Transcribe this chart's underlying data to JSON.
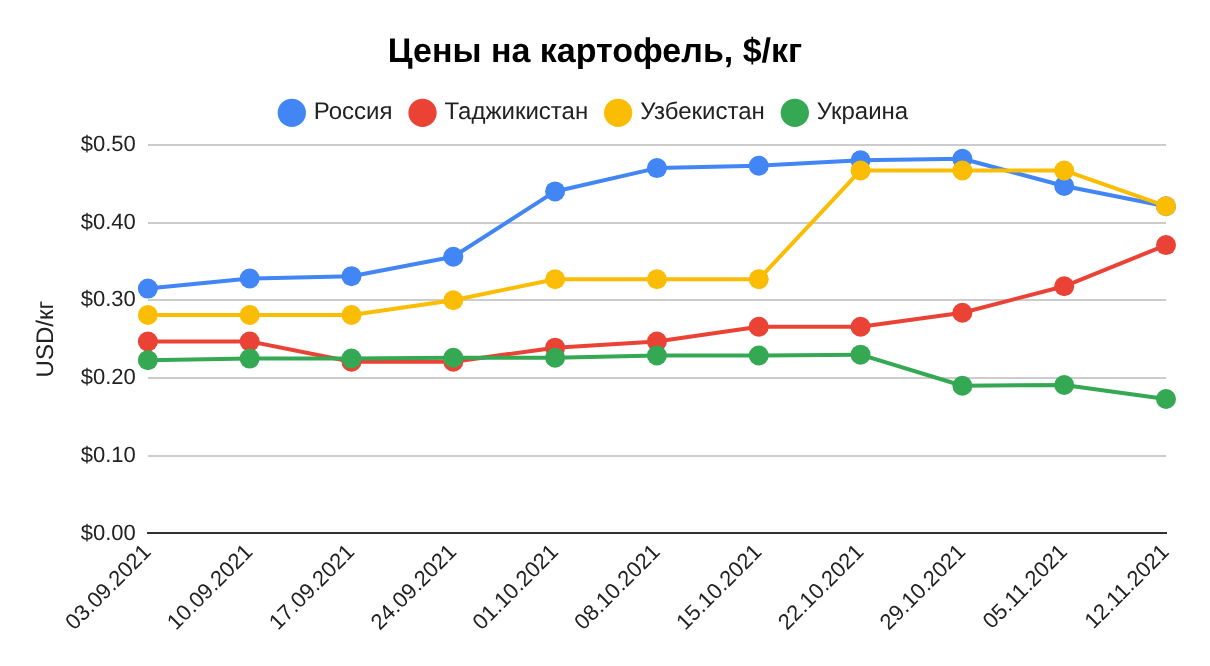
{
  "chart_data": {
    "type": "line",
    "title": "Цены на картофель, $/кг",
    "ylabel": "USD/кг",
    "categories": [
      "03.09.2021",
      "10.09.2021",
      "17.09.2021",
      "24.09.2021",
      "01.10.2021",
      "08.10.2021",
      "15.10.2021",
      "22.10.2021",
      "29.10.2021",
      "05.11.2021",
      "12.11.2021"
    ],
    "series": [
      {
        "name": "Россия",
        "color": "#4285f4",
        "values": [
          0.315,
          0.328,
          0.331,
          0.356,
          0.44,
          0.47,
          0.473,
          0.48,
          0.482,
          0.447,
          0.421
        ]
      },
      {
        "name": "Таджикистан",
        "color": "#ea4335",
        "values": [
          0.247,
          0.247,
          0.221,
          0.221,
          0.239,
          0.247,
          0.266,
          0.266,
          0.284,
          0.318,
          0.371
        ]
      },
      {
        "name": "Узбекистан",
        "color": "#fbbc04",
        "values": [
          0.281,
          0.281,
          0.281,
          0.3,
          0.327,
          0.327,
          0.327,
          0.467,
          0.467,
          0.467,
          0.421
        ]
      },
      {
        "name": "Украина",
        "color": "#34a853",
        "values": [
          0.223,
          0.225,
          0.225,
          0.226,
          0.226,
          0.229,
          0.229,
          0.23,
          0.19,
          0.191,
          0.173
        ]
      }
    ],
    "ylim": [
      0,
      0.5
    ],
    "yticks": [
      {
        "value": 0,
        "label": "$0.00"
      },
      {
        "value": 0.1,
        "label": "$0.10"
      },
      {
        "value": 0.2,
        "label": "$0.20"
      },
      {
        "value": 0.3,
        "label": "$0.30"
      },
      {
        "value": 0.4,
        "label": "$0.40"
      },
      {
        "value": 0.5,
        "label": "$0.50"
      }
    ],
    "grid": "y",
    "legend": "top",
    "marker": "circle",
    "line_style": "solid"
  }
}
